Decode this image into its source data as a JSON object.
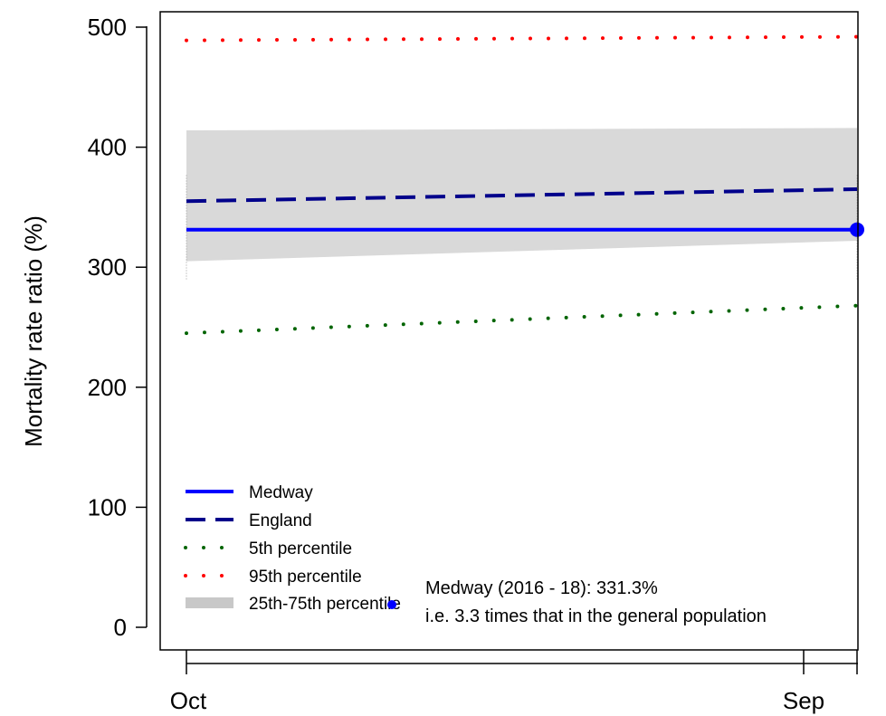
{
  "chart_data": {
    "type": "line",
    "title": "",
    "xlabel": "",
    "ylabel": "Mortality rate ratio (%)",
    "ylim": [
      -15,
      515
    ],
    "y_ticks": [
      0,
      100,
      200,
      300,
      400,
      500
    ],
    "x_ticks": [
      "Oct",
      "Sep"
    ],
    "x": [
      0,
      1
    ],
    "band": {
      "name": "25th-75th percentile",
      "lower": [
        305,
        322
      ],
      "upper": [
        414,
        416
      ],
      "color": "#d9d9d9"
    },
    "series": [
      {
        "name": "Medway",
        "values": [
          331.3,
          331.3
        ],
        "color": "#0000ff",
        "style": "solid"
      },
      {
        "name": "England",
        "values": [
          355,
          365
        ],
        "color": "#00008b",
        "style": "dashed"
      },
      {
        "name": "5th percentile",
        "values": [
          245,
          268
        ],
        "color": "#006400",
        "style": "dotted"
      },
      {
        "name": "95th percentile",
        "values": [
          489,
          492
        ],
        "color": "#ff0000",
        "style": "dotted"
      }
    ],
    "whiskers": {
      "low": 290,
      "high": 377
    },
    "highlight_point": {
      "x": 1,
      "y": 331.3,
      "color": "#0000ff"
    },
    "legend": {
      "placement": "bottom-left",
      "entries": [
        "Medway",
        "England",
        "5th percentile",
        "95th percentile",
        "25th-75th percentile"
      ]
    },
    "annotation": {
      "line1": "Medway (2016 - 18): 331.3%",
      "line2": "i.e. 3.3 times that in the general population",
      "marker_color": "#0000ff"
    }
  }
}
